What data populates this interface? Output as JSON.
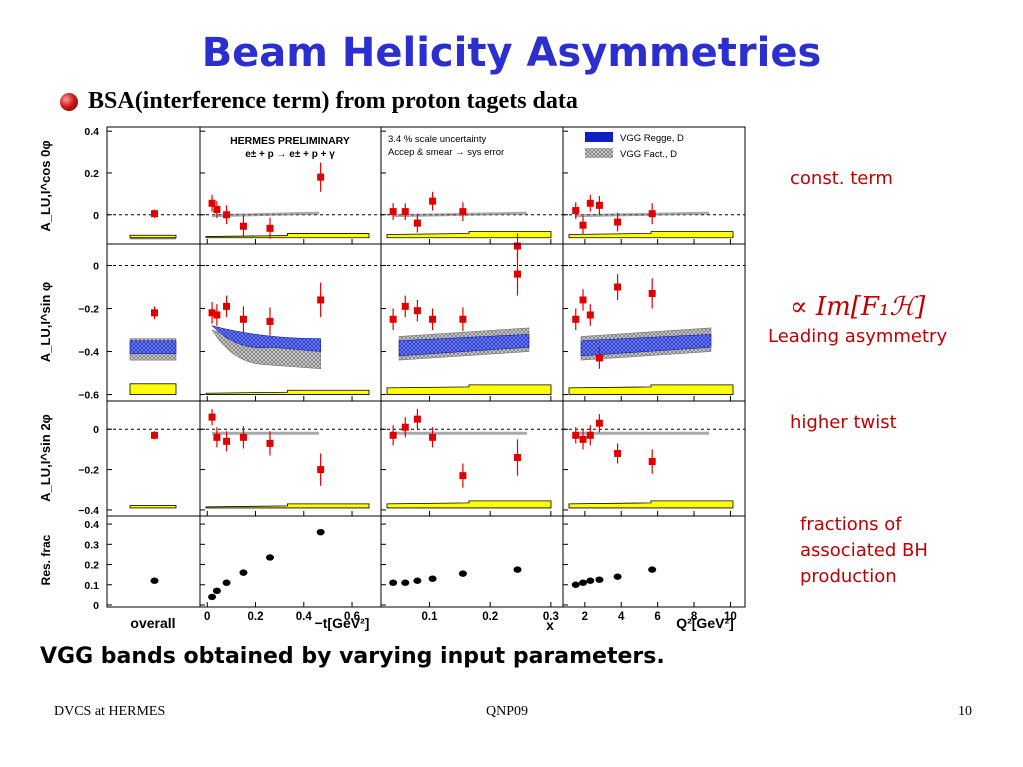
{
  "slide": {
    "title": "Beam Helicity Asymmetries",
    "subtitle": "BSA(interference term) from proton tagets data",
    "annotations": {
      "const": "const. term",
      "formula": "∝ Im[F₁ℋ]",
      "leading": "Leading asymmetry",
      "twist": "higher twist",
      "fractions": [
        "fractions of",
        "associated BH",
        "production"
      ]
    },
    "bottom_note": "VGG bands obtained by varying input parameters.",
    "footer": {
      "left": "DVCS at HERMES",
      "center": "QNP09",
      "right": "10"
    }
  },
  "colors": {
    "title": "#2b2fd0",
    "annotation": "#c00000",
    "data_points": "#e00000",
    "regge_band": "#1020c0",
    "fact_band": "#9a9a9a",
    "sys_error": "#ffff00"
  },
  "chart_data": {
    "type": "scatter",
    "panel_texts": {
      "preliminary": "HERMES PRELIMINARY",
      "reaction": "e± + p → e± + p + γ",
      "scale_unc": "3.4 % scale uncertainty",
      "accep": "Accep & smear → sys error",
      "legend_regge": "VGG Regge, D",
      "legend_fact": "VGG Fact., D"
    },
    "row_labels": [
      "A_LU,I^cos 0φ",
      "A_LU,I^sin φ",
      "A_LU,I^sin 2φ",
      "Res. frac"
    ],
    "x_axes": [
      {
        "label": "overall",
        "ticks": []
      },
      {
        "label": "−t[GeV²]",
        "range": [
          -0.03,
          0.72
        ],
        "ticks": [
          0,
          0.2,
          0.4,
          0.6
        ]
      },
      {
        "label": "x_B",
        "range": [
          0.02,
          0.32
        ],
        "ticks": [
          0.1,
          0.2,
          0.3
        ]
      },
      {
        "label": "Q²[GeV²]",
        "range": [
          0.8,
          10.8
        ],
        "ticks": [
          2,
          4,
          6,
          8,
          10
        ]
      }
    ],
    "rows": [
      {
        "name": "cos0phi",
        "ylim": [
          -0.14,
          0.42
        ],
        "ticks": [
          0,
          0.2,
          0.4
        ],
        "overall": {
          "y": 0.005,
          "err": 0.02
        },
        "t": {
          "x": [
            0.02,
            0.04,
            0.08,
            0.15,
            0.26,
            0.47
          ],
          "y": [
            0.055,
            0.025,
            0.0,
            -0.055,
            -0.065,
            0.18
          ],
          "err": [
            0.04,
            0.04,
            0.045,
            0.05,
            0.05,
            0.07
          ]
        },
        "xb": {
          "x": [
            0.04,
            0.06,
            0.08,
            0.105,
            0.155,
            0.245
          ],
          "y": [
            0.015,
            0.015,
            -0.04,
            0.065,
            0.015,
            -0.15
          ],
          "err": [
            0.04,
            0.04,
            0.045,
            0.045,
            0.045,
            0.06
          ]
        },
        "q2": {
          "x": [
            1.5,
            1.9,
            2.3,
            2.8,
            3.8,
            5.7
          ],
          "y": [
            0.02,
            -0.05,
            0.055,
            0.045,
            -0.035,
            0.005
          ],
          "err": [
            0.04,
            0.045,
            0.04,
            0.045,
            0.045,
            0.05
          ]
        }
      },
      {
        "name": "sinphi",
        "ylim": [
          -0.63,
          0.1
        ],
        "ticks": [
          0,
          -0.2,
          -0.4,
          -0.6
        ],
        "overall": {
          "y": -0.22,
          "err": 0.03
        },
        "t": {
          "x": [
            0.02,
            0.04,
            0.08,
            0.15,
            0.26,
            0.47
          ],
          "y": [
            -0.22,
            -0.23,
            -0.19,
            -0.25,
            -0.26,
            -0.16
          ],
          "err": [
            0.05,
            0.05,
            0.05,
            0.06,
            0.065,
            0.08
          ]
        },
        "xb": {
          "x": [
            0.04,
            0.06,
            0.08,
            0.105,
            0.155,
            0.245
          ],
          "y": [
            -0.25,
            -0.19,
            -0.21,
            -0.25,
            -0.25,
            -0.04
          ],
          "err": [
            0.05,
            0.05,
            0.05,
            0.05,
            0.055,
            0.1
          ]
        },
        "q2": {
          "x": [
            1.5,
            1.9,
            2.3,
            2.8,
            3.8,
            5.7
          ],
          "y": [
            -0.25,
            -0.16,
            -0.23,
            -0.43,
            -0.1,
            -0.13
          ],
          "err": [
            0.05,
            0.05,
            0.05,
            0.05,
            0.06,
            0.07
          ]
        }
      },
      {
        "name": "sin2phi",
        "ylim": [
          -0.43,
          0.14
        ],
        "ticks": [
          0,
          -0.2,
          -0.4
        ],
        "overall": {
          "y": -0.03,
          "err": 0.02
        },
        "t": {
          "x": [
            0.02,
            0.04,
            0.08,
            0.15,
            0.26,
            0.47
          ],
          "y": [
            0.06,
            -0.04,
            -0.06,
            -0.04,
            -0.07,
            -0.2
          ],
          "err": [
            0.04,
            0.05,
            0.05,
            0.055,
            0.06,
            0.08
          ]
        },
        "xb": {
          "x": [
            0.04,
            0.06,
            0.08,
            0.105,
            0.155,
            0.245
          ],
          "y": [
            -0.03,
            0.01,
            0.05,
            -0.04,
            -0.23,
            -0.14
          ],
          "err": [
            0.05,
            0.05,
            0.05,
            0.05,
            0.06,
            0.09
          ]
        },
        "q2": {
          "x": [
            1.5,
            1.9,
            2.3,
            2.8,
            3.8,
            5.7
          ],
          "y": [
            -0.03,
            -0.05,
            -0.03,
            0.03,
            -0.12,
            -0.16
          ],
          "err": [
            0.04,
            0.05,
            0.05,
            0.045,
            0.05,
            0.06
          ]
        }
      },
      {
        "name": "resfrac",
        "ylim": [
          -0.01,
          0.44
        ],
        "ticks": [
          0,
          0.1,
          0.2,
          0.3,
          0.4
        ],
        "overall": {
          "y": 0.12
        },
        "t": {
          "x": [
            0.02,
            0.04,
            0.08,
            0.15,
            0.26,
            0.47
          ],
          "y": [
            0.04,
            0.07,
            0.11,
            0.16,
            0.235,
            0.36
          ]
        },
        "xb": {
          "x": [
            0.04,
            0.06,
            0.08,
            0.105,
            0.155,
            0.245
          ],
          "y": [
            0.11,
            0.11,
            0.12,
            0.13,
            0.155,
            0.175
          ]
        },
        "q2": {
          "x": [
            1.5,
            1.9,
            2.3,
            2.8,
            3.8,
            5.7
          ],
          "y": [
            0.1,
            0.11,
            0.12,
            0.125,
            0.14,
            0.175
          ]
        }
      }
    ]
  }
}
